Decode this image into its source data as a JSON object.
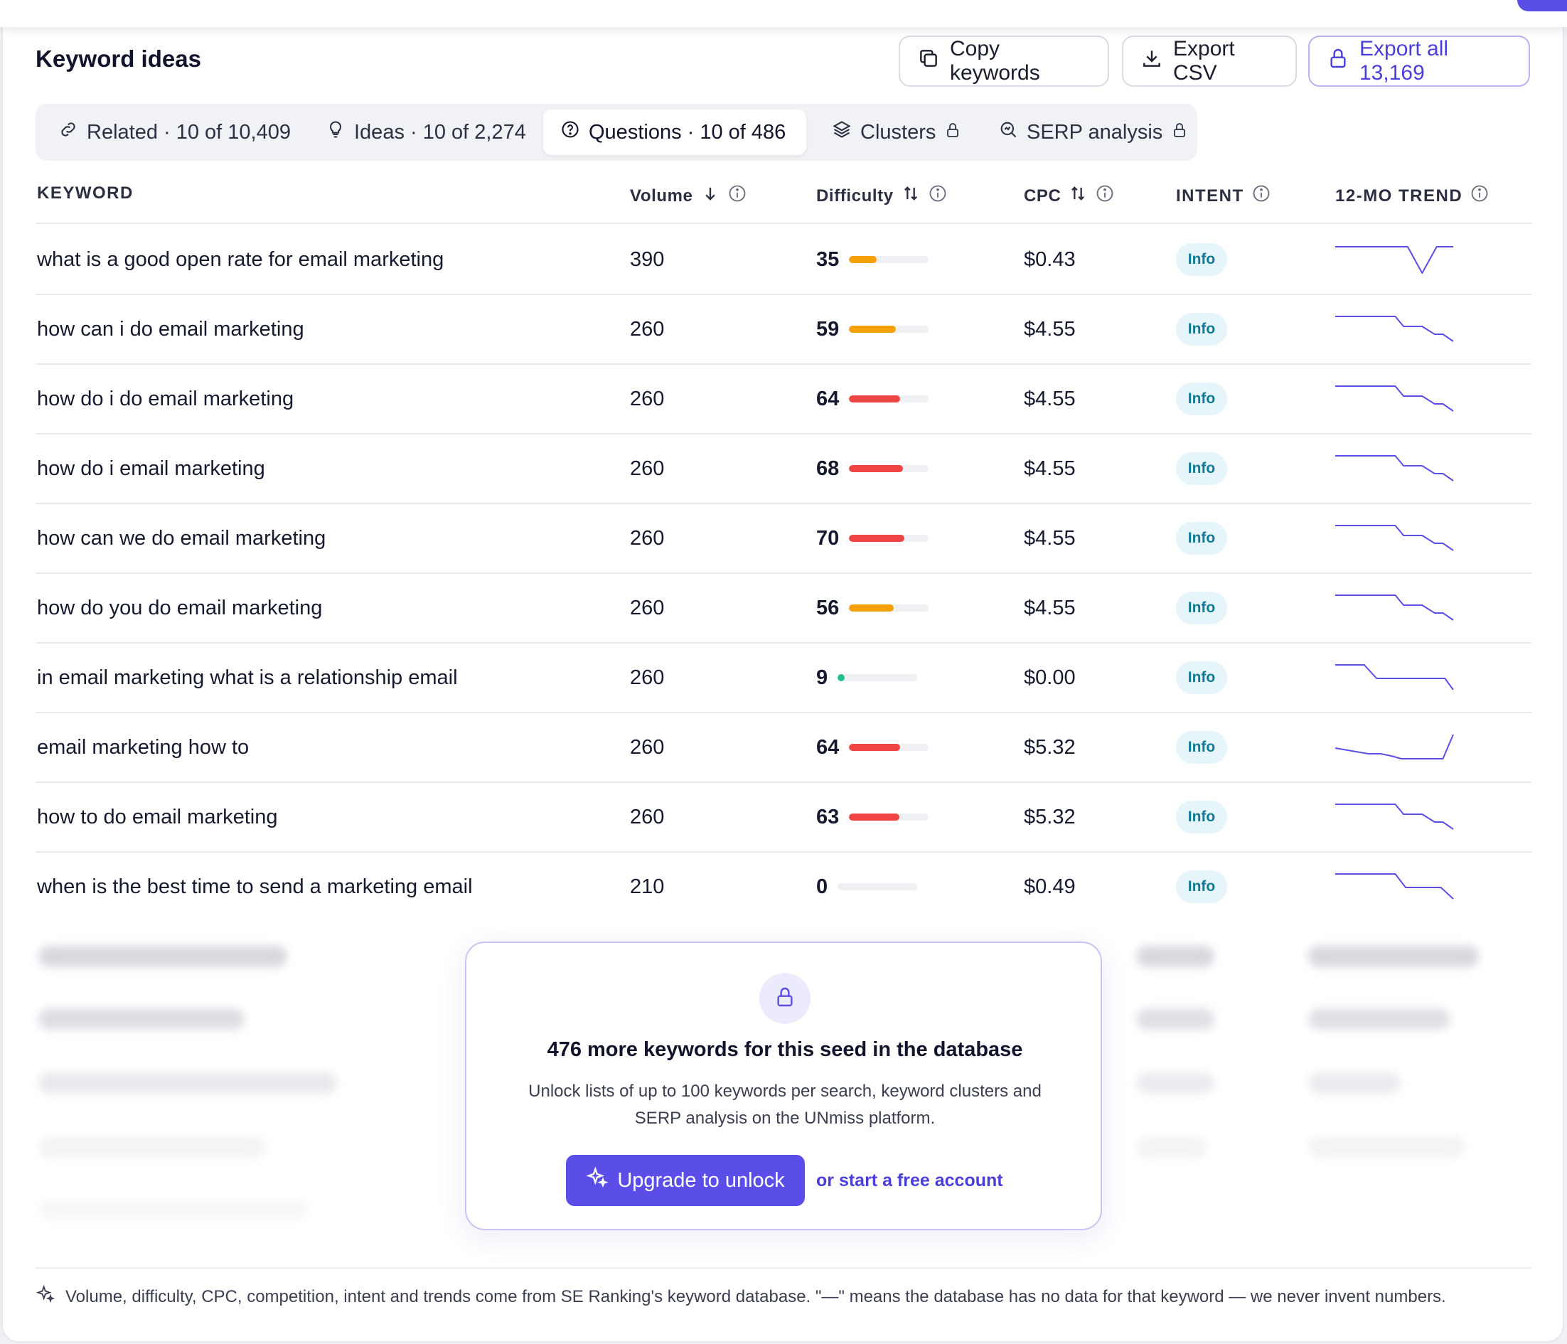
{
  "header": {
    "title": "Keyword ideas",
    "copy_label": "Copy keywords",
    "export_csv_label": "Export CSV",
    "export_all_label": "Export all 13,169"
  },
  "tabs": [
    {
      "label": "Related · 10 of 10,409",
      "icon": "link-icon"
    },
    {
      "label": "Ideas · 10 of 2,274",
      "icon": "lightbulb-icon"
    },
    {
      "label": "Questions · 10 of 486",
      "icon": "question-circle-icon",
      "active": true
    },
    {
      "label": "Clusters",
      "icon": "layers-icon",
      "locked": true
    },
    {
      "label": "SERP analysis",
      "icon": "search-chart-icon",
      "locked": true
    }
  ],
  "columns": {
    "keyword": "KEYWORD",
    "volume": "Volume",
    "difficulty": "Difficulty",
    "cpc": "CPC",
    "intent": "INTENT",
    "trend": "12-MO TREND"
  },
  "rows": [
    {
      "keyword": "what is a good open rate for email marketing",
      "volume": "390",
      "difficulty": "35",
      "difficulty_pct": 35,
      "cpc": "$0.43",
      "intent": "Info",
      "trend": "dip"
    },
    {
      "keyword": "how can i do email marketing",
      "volume": "260",
      "difficulty": "59",
      "difficulty_pct": 59,
      "cpc": "$4.55",
      "intent": "Info",
      "trend": "decline"
    },
    {
      "keyword": "how do i do email marketing",
      "volume": "260",
      "difficulty": "64",
      "difficulty_pct": 64,
      "cpc": "$4.55",
      "intent": "Info",
      "trend": "decline"
    },
    {
      "keyword": "how do i email marketing",
      "volume": "260",
      "difficulty": "68",
      "difficulty_pct": 68,
      "cpc": "$4.55",
      "intent": "Info",
      "trend": "decline"
    },
    {
      "keyword": "how can we do email marketing",
      "volume": "260",
      "difficulty": "70",
      "difficulty_pct": 70,
      "cpc": "$4.55",
      "intent": "Info",
      "trend": "decline"
    },
    {
      "keyword": "how do you do email marketing",
      "volume": "260",
      "difficulty": "56",
      "difficulty_pct": 56,
      "cpc": "$4.55",
      "intent": "Info",
      "trend": "decline"
    },
    {
      "keyword": "in email marketing what is a relationship email",
      "volume": "260",
      "difficulty": "9",
      "difficulty_pct": 9,
      "cpc": "$0.00",
      "intent": "Info",
      "trend": "step-down"
    },
    {
      "keyword": "email marketing how to",
      "volume": "260",
      "difficulty": "64",
      "difficulty_pct": 64,
      "cpc": "$5.32",
      "intent": "Info",
      "trend": "spike-up"
    },
    {
      "keyword": "how to do email marketing",
      "volume": "260",
      "difficulty": "63",
      "difficulty_pct": 63,
      "cpc": "$5.32",
      "intent": "Info",
      "trend": "decline"
    },
    {
      "keyword": "when is the best time to send a marketing email",
      "volume": "210",
      "difficulty": "0",
      "difficulty_pct": 0,
      "cpc": "$0.49",
      "intent": "Info",
      "trend": "step-down-late"
    }
  ],
  "upsell": {
    "title": "476 more keywords for this seed in the database",
    "description": "Unlock lists of up to 100 keywords per search, keyword clusters and SERP analysis on the UNmiss platform.",
    "upgrade_label": "Upgrade to unlock",
    "free_link": "or start a free account"
  },
  "footer": {
    "note": "Volume, difficulty, CPC, competition, intent and trends come from SE Ranking's keyword database. \"—\" means the database has no data for that keyword — we never invent numbers."
  },
  "colors": {
    "accent": "#5b4ee8",
    "difficulty_low": "#22c08a",
    "difficulty_medium": "#f5a20a",
    "difficulty_high": "#ef4444",
    "intent_info": "#117a95",
    "trend_line": "#5b4ee8"
  }
}
